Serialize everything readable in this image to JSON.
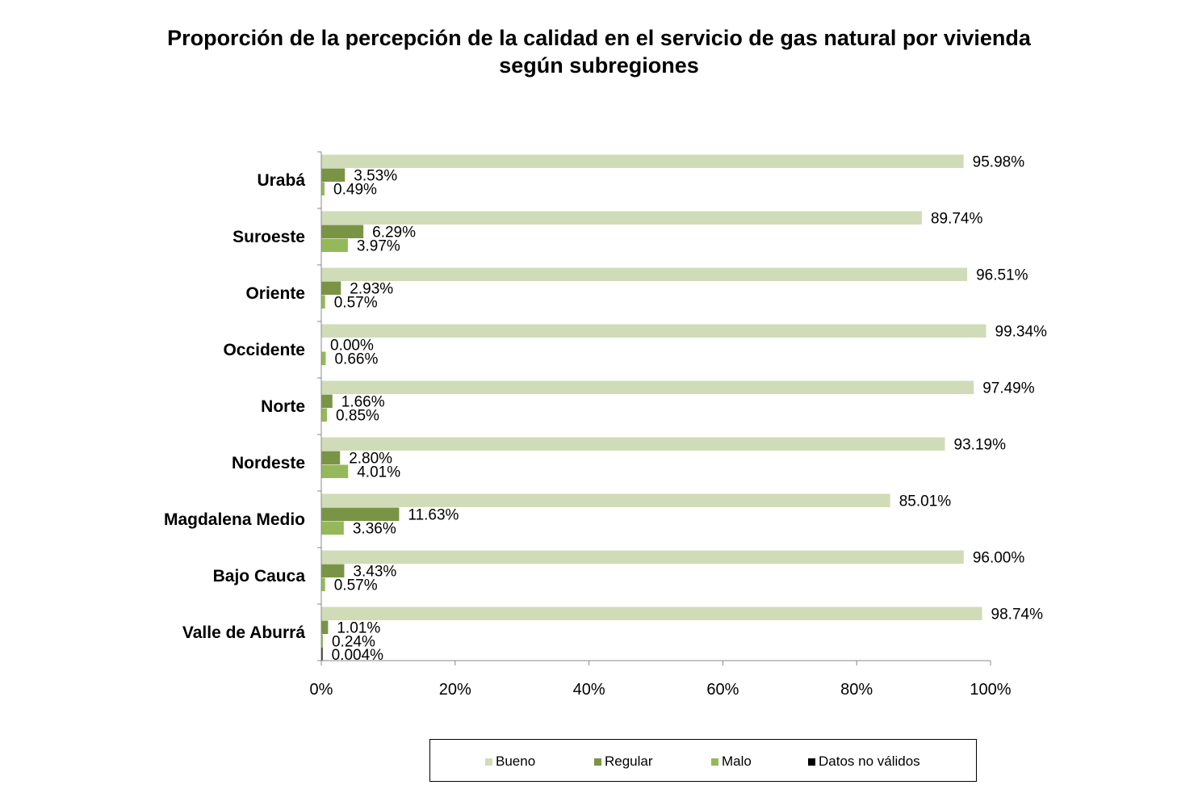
{
  "title": {
    "line1": "Proporción de la percepción de la calidad en el servicio de gas natural por vivienda",
    "line2": "según subregiones"
  },
  "colors": {
    "Bueno": "#d0dcb8",
    "Regular": "#7a9446",
    "Malo": "#95b95a",
    "Datos no válidos": "#000000",
    "axis": "#888888"
  },
  "chart_data": {
    "type": "bar",
    "orientation": "horizontal",
    "title": "Proporción de la percepción de la calidad en el servicio de gas natural por vivienda según subregiones",
    "xlim": [
      0,
      100
    ],
    "x_ticks": [
      "0%",
      "20%",
      "40%",
      "60%",
      "80%",
      "100%"
    ],
    "grid": false,
    "legend_position": "bottom",
    "categories": [
      "Urabá",
      "Suroeste",
      "Oriente",
      "Occidente",
      "Norte",
      "Nordeste",
      "Magdalena Medio",
      "Bajo Cauca",
      "Valle de Aburrá"
    ],
    "series": [
      {
        "name": "Bueno",
        "values": [
          95.98,
          89.74,
          96.51,
          99.34,
          97.49,
          93.19,
          85.01,
          96.0,
          98.74
        ],
        "labels": [
          "95.98%",
          "89.74%",
          "96.51%",
          "99.34%",
          "97.49%",
          "93.19%",
          "85.01%",
          "96.00%",
          "98.74%"
        ]
      },
      {
        "name": "Regular",
        "values": [
          3.53,
          6.29,
          2.93,
          0.0,
          1.66,
          2.8,
          11.63,
          3.43,
          1.01
        ],
        "labels": [
          "3.53%",
          "6.29%",
          "2.93%",
          "0.00%",
          "1.66%",
          "2.80%",
          "11.63%",
          "3.43%",
          "1.01%"
        ]
      },
      {
        "name": "Malo",
        "values": [
          0.49,
          3.97,
          0.57,
          0.66,
          0.85,
          4.01,
          3.36,
          0.57,
          0.24
        ],
        "labels": [
          "0.49%",
          "3.97%",
          "0.57%",
          "0.66%",
          "0.85%",
          "4.01%",
          "3.36%",
          "0.57%",
          "0.24%"
        ]
      },
      {
        "name": "Datos no válidos",
        "values": [
          null,
          null,
          null,
          null,
          null,
          null,
          null,
          null,
          0.004
        ],
        "labels": [
          null,
          null,
          null,
          null,
          null,
          null,
          null,
          null,
          "0.004%"
        ]
      }
    ]
  }
}
